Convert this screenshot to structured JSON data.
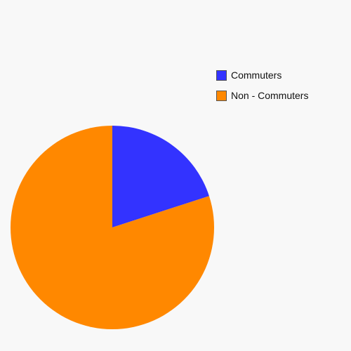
{
  "chart_data": {
    "type": "pie",
    "categories": [
      "Commuters",
      "Non - Commuters"
    ],
    "values": [
      20,
      80
    ],
    "colors": [
      "#3333ff",
      "#ff8800"
    ],
    "legend_position": "top-right"
  }
}
